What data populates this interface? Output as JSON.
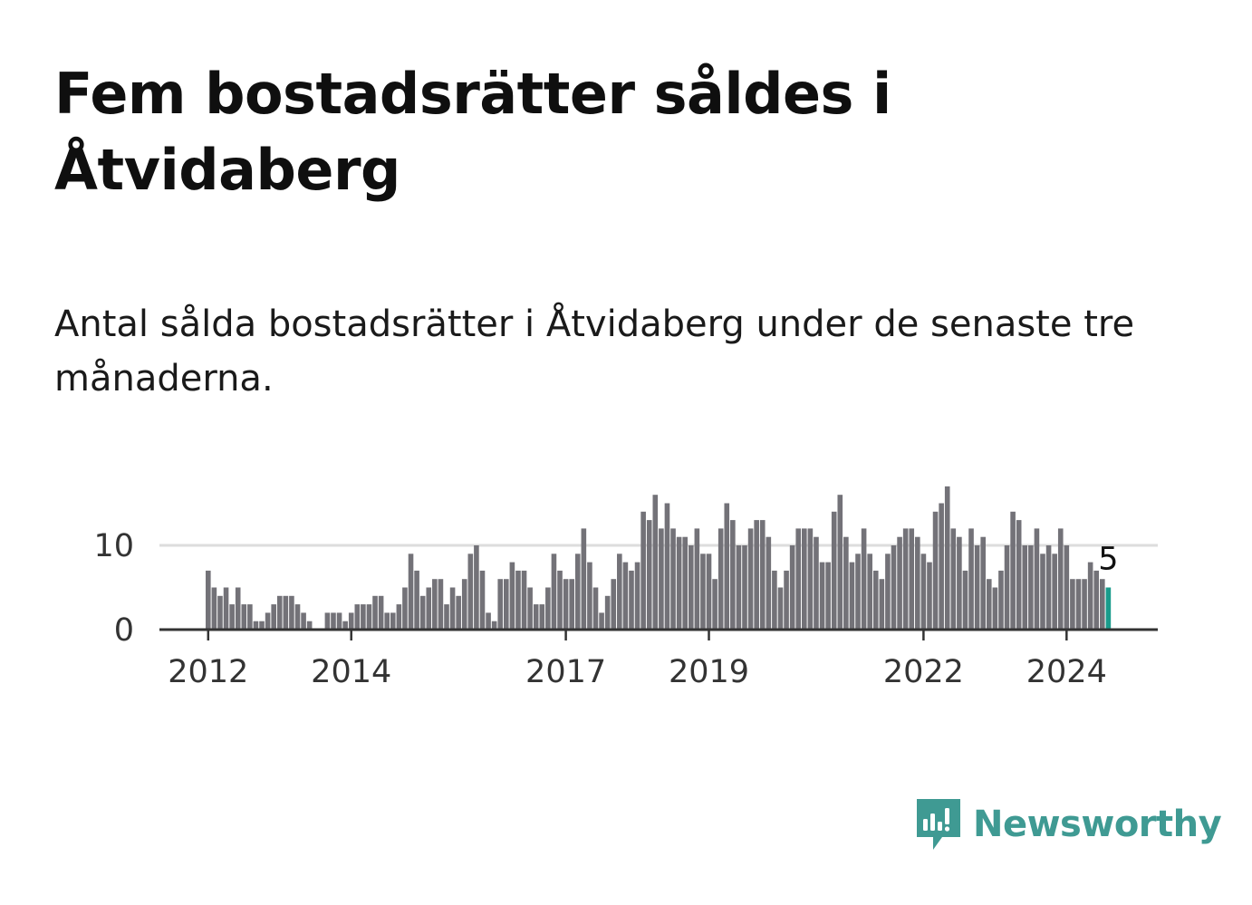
{
  "title": "Fem bostadsrätter såldes i Åtvidaberg",
  "subtitle": "Antal sålda bostadsrätter i Åtvidaberg under de senaste tre månaderna.",
  "logo": {
    "text": "Newsworthy",
    "icon": "newsworthy-logo-icon",
    "color": "#3f9a93"
  },
  "colors": {
    "bar": "#737278",
    "highlight": "#1a9c8c",
    "grid": "#dddddd",
    "axis": "#333333"
  },
  "chart_data": {
    "type": "bar",
    "x_start": "2012-01",
    "interval": "month",
    "values": [
      7,
      5,
      4,
      5,
      3,
      5,
      3,
      3,
      1,
      1,
      2,
      3,
      4,
      4,
      4,
      3,
      2,
      1,
      0,
      0,
      2,
      2,
      2,
      1,
      2,
      3,
      3,
      3,
      4,
      4,
      2,
      2,
      3,
      5,
      9,
      7,
      4,
      5,
      6,
      6,
      3,
      5,
      4,
      6,
      9,
      10,
      7,
      2,
      1,
      6,
      6,
      8,
      7,
      7,
      5,
      3,
      3,
      5,
      9,
      7,
      6,
      6,
      9,
      12,
      8,
      5,
      2,
      4,
      6,
      9,
      8,
      7,
      8,
      14,
      13,
      16,
      12,
      15,
      12,
      11,
      11,
      10,
      12,
      9,
      9,
      6,
      12,
      15,
      13,
      10,
      10,
      12,
      13,
      13,
      11,
      7,
      5,
      7,
      10,
      12,
      12,
      12,
      11,
      8,
      8,
      14,
      16,
      11,
      8,
      9,
      12,
      9,
      7,
      6,
      9,
      10,
      11,
      12,
      12,
      11,
      9,
      8,
      14,
      15,
      17,
      12,
      11,
      7,
      12,
      10,
      11,
      6,
      5,
      7,
      10,
      14,
      13,
      10,
      10,
      12,
      9,
      10,
      9,
      12,
      10,
      6,
      6,
      6,
      8,
      7,
      6,
      5
    ],
    "highlight_last": true,
    "annotation": {
      "label": "5"
    },
    "y_ticks": [
      {
        "value": 0,
        "label": "0"
      },
      {
        "value": 10,
        "label": "10"
      }
    ],
    "x_ticks": [
      {
        "index": 0,
        "label": "2012"
      },
      {
        "index": 24,
        "label": "2014"
      },
      {
        "index": 60,
        "label": "2017"
      },
      {
        "index": 84,
        "label": "2019"
      },
      {
        "index": 120,
        "label": "2022"
      },
      {
        "index": 144,
        "label": "2024"
      }
    ],
    "ylim": [
      0,
      17
    ],
    "xlabel": "",
    "ylabel": "",
    "grid": true,
    "legend": "none"
  }
}
